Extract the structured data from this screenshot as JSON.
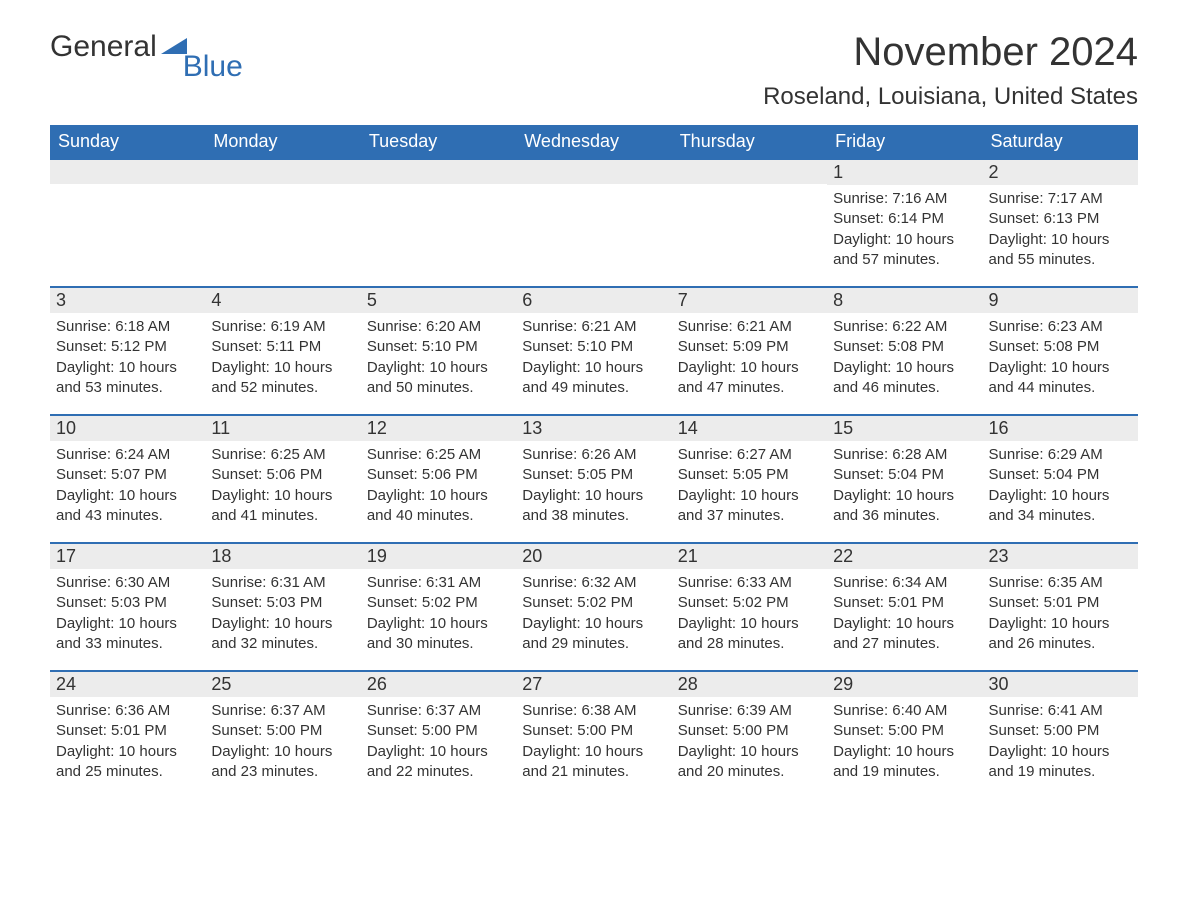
{
  "logo": {
    "text1": "General",
    "text2": "Blue"
  },
  "title": "November 2024",
  "location": "Roseland, Louisiana, United States",
  "colors": {
    "header_bg": "#2f6eb3",
    "header_fg": "#ffffff",
    "daynum_bg": "#ececec",
    "border": "#2f6eb3",
    "text": "#333333",
    "page_bg": "#ffffff"
  },
  "font": {
    "family": "Arial",
    "title_size": 40,
    "location_size": 24,
    "dayheader_size": 18,
    "body_size": 15
  },
  "day_headers": [
    "Sunday",
    "Monday",
    "Tuesday",
    "Wednesday",
    "Thursday",
    "Friday",
    "Saturday"
  ],
  "weeks": [
    [
      {
        "day": "",
        "sunrise": "",
        "sunset": "",
        "daylight": ""
      },
      {
        "day": "",
        "sunrise": "",
        "sunset": "",
        "daylight": ""
      },
      {
        "day": "",
        "sunrise": "",
        "sunset": "",
        "daylight": ""
      },
      {
        "day": "",
        "sunrise": "",
        "sunset": "",
        "daylight": ""
      },
      {
        "day": "",
        "sunrise": "",
        "sunset": "",
        "daylight": ""
      },
      {
        "day": "1",
        "sunrise": "Sunrise: 7:16 AM",
        "sunset": "Sunset: 6:14 PM",
        "daylight": "Daylight: 10 hours and 57 minutes."
      },
      {
        "day": "2",
        "sunrise": "Sunrise: 7:17 AM",
        "sunset": "Sunset: 6:13 PM",
        "daylight": "Daylight: 10 hours and 55 minutes."
      }
    ],
    [
      {
        "day": "3",
        "sunrise": "Sunrise: 6:18 AM",
        "sunset": "Sunset: 5:12 PM",
        "daylight": "Daylight: 10 hours and 53 minutes."
      },
      {
        "day": "4",
        "sunrise": "Sunrise: 6:19 AM",
        "sunset": "Sunset: 5:11 PM",
        "daylight": "Daylight: 10 hours and 52 minutes."
      },
      {
        "day": "5",
        "sunrise": "Sunrise: 6:20 AM",
        "sunset": "Sunset: 5:10 PM",
        "daylight": "Daylight: 10 hours and 50 minutes."
      },
      {
        "day": "6",
        "sunrise": "Sunrise: 6:21 AM",
        "sunset": "Sunset: 5:10 PM",
        "daylight": "Daylight: 10 hours and 49 minutes."
      },
      {
        "day": "7",
        "sunrise": "Sunrise: 6:21 AM",
        "sunset": "Sunset: 5:09 PM",
        "daylight": "Daylight: 10 hours and 47 minutes."
      },
      {
        "day": "8",
        "sunrise": "Sunrise: 6:22 AM",
        "sunset": "Sunset: 5:08 PM",
        "daylight": "Daylight: 10 hours and 46 minutes."
      },
      {
        "day": "9",
        "sunrise": "Sunrise: 6:23 AM",
        "sunset": "Sunset: 5:08 PM",
        "daylight": "Daylight: 10 hours and 44 minutes."
      }
    ],
    [
      {
        "day": "10",
        "sunrise": "Sunrise: 6:24 AM",
        "sunset": "Sunset: 5:07 PM",
        "daylight": "Daylight: 10 hours and 43 minutes."
      },
      {
        "day": "11",
        "sunrise": "Sunrise: 6:25 AM",
        "sunset": "Sunset: 5:06 PM",
        "daylight": "Daylight: 10 hours and 41 minutes."
      },
      {
        "day": "12",
        "sunrise": "Sunrise: 6:25 AM",
        "sunset": "Sunset: 5:06 PM",
        "daylight": "Daylight: 10 hours and 40 minutes."
      },
      {
        "day": "13",
        "sunrise": "Sunrise: 6:26 AM",
        "sunset": "Sunset: 5:05 PM",
        "daylight": "Daylight: 10 hours and 38 minutes."
      },
      {
        "day": "14",
        "sunrise": "Sunrise: 6:27 AM",
        "sunset": "Sunset: 5:05 PM",
        "daylight": "Daylight: 10 hours and 37 minutes."
      },
      {
        "day": "15",
        "sunrise": "Sunrise: 6:28 AM",
        "sunset": "Sunset: 5:04 PM",
        "daylight": "Daylight: 10 hours and 36 minutes."
      },
      {
        "day": "16",
        "sunrise": "Sunrise: 6:29 AM",
        "sunset": "Sunset: 5:04 PM",
        "daylight": "Daylight: 10 hours and 34 minutes."
      }
    ],
    [
      {
        "day": "17",
        "sunrise": "Sunrise: 6:30 AM",
        "sunset": "Sunset: 5:03 PM",
        "daylight": "Daylight: 10 hours and 33 minutes."
      },
      {
        "day": "18",
        "sunrise": "Sunrise: 6:31 AM",
        "sunset": "Sunset: 5:03 PM",
        "daylight": "Daylight: 10 hours and 32 minutes."
      },
      {
        "day": "19",
        "sunrise": "Sunrise: 6:31 AM",
        "sunset": "Sunset: 5:02 PM",
        "daylight": "Daylight: 10 hours and 30 minutes."
      },
      {
        "day": "20",
        "sunrise": "Sunrise: 6:32 AM",
        "sunset": "Sunset: 5:02 PM",
        "daylight": "Daylight: 10 hours and 29 minutes."
      },
      {
        "day": "21",
        "sunrise": "Sunrise: 6:33 AM",
        "sunset": "Sunset: 5:02 PM",
        "daylight": "Daylight: 10 hours and 28 minutes."
      },
      {
        "day": "22",
        "sunrise": "Sunrise: 6:34 AM",
        "sunset": "Sunset: 5:01 PM",
        "daylight": "Daylight: 10 hours and 27 minutes."
      },
      {
        "day": "23",
        "sunrise": "Sunrise: 6:35 AM",
        "sunset": "Sunset: 5:01 PM",
        "daylight": "Daylight: 10 hours and 26 minutes."
      }
    ],
    [
      {
        "day": "24",
        "sunrise": "Sunrise: 6:36 AM",
        "sunset": "Sunset: 5:01 PM",
        "daylight": "Daylight: 10 hours and 25 minutes."
      },
      {
        "day": "25",
        "sunrise": "Sunrise: 6:37 AM",
        "sunset": "Sunset: 5:00 PM",
        "daylight": "Daylight: 10 hours and 23 minutes."
      },
      {
        "day": "26",
        "sunrise": "Sunrise: 6:37 AM",
        "sunset": "Sunset: 5:00 PM",
        "daylight": "Daylight: 10 hours and 22 minutes."
      },
      {
        "day": "27",
        "sunrise": "Sunrise: 6:38 AM",
        "sunset": "Sunset: 5:00 PM",
        "daylight": "Daylight: 10 hours and 21 minutes."
      },
      {
        "day": "28",
        "sunrise": "Sunrise: 6:39 AM",
        "sunset": "Sunset: 5:00 PM",
        "daylight": "Daylight: 10 hours and 20 minutes."
      },
      {
        "day": "29",
        "sunrise": "Sunrise: 6:40 AM",
        "sunset": "Sunset: 5:00 PM",
        "daylight": "Daylight: 10 hours and 19 minutes."
      },
      {
        "day": "30",
        "sunrise": "Sunrise: 6:41 AM",
        "sunset": "Sunset: 5:00 PM",
        "daylight": "Daylight: 10 hours and 19 minutes."
      }
    ]
  ]
}
